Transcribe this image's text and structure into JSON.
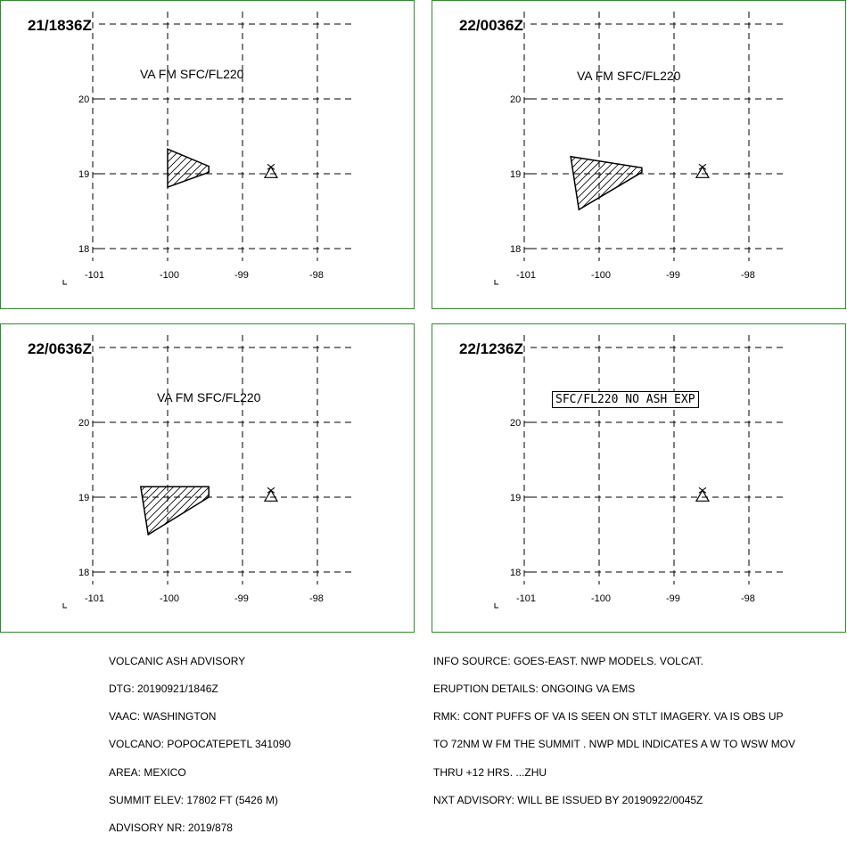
{
  "panels": [
    {
      "time": "21/1836Z",
      "header": "VA FM SFC/FL220",
      "polygon": [
        [
          -100.0,
          19.33
        ],
        [
          -99.45,
          19.1
        ],
        [
          -99.45,
          19.02
        ],
        [
          -100.0,
          18.82
        ]
      ]
    },
    {
      "time": "22/0036Z",
      "header": "VA FM SFC/FL220",
      "polygon": [
        [
          -100.38,
          19.23
        ],
        [
          -99.43,
          19.08
        ],
        [
          -99.43,
          19.02
        ],
        [
          -100.27,
          18.52
        ]
      ]
    },
    {
      "time": "22/0636Z",
      "header": "VA FM SFC/FL220",
      "polygon": [
        [
          -100.36,
          19.14
        ],
        [
          -99.45,
          19.14
        ],
        [
          -99.45,
          19.0
        ],
        [
          -100.26,
          18.5
        ]
      ]
    },
    {
      "time": "22/1236Z",
      "header": "",
      "box": "SFC/FL220 NO ASH EXP",
      "polygon": []
    }
  ],
  "axes": {
    "x_ticks": [
      -101,
      -100,
      -99,
      -98
    ],
    "y_ticks": [
      18,
      19,
      20
    ],
    "x_tick_labels": [
      "-101",
      "-100",
      "-99",
      "-98"
    ],
    "y_tick_labels": [
      "18",
      "19",
      "20"
    ]
  },
  "volcano": {
    "lon": -98.62,
    "lat": 19.02
  },
  "advisory_left": [
    "VOLCANIC ASH ADVISORY",
    "DTG: 20190921/1846Z",
    "VAAC: WASHINGTON",
    "VOLCANO: POPOCATEPETL 341090",
    "AREA: MEXICO",
    "SUMMIT ELEV: 17802 FT (5426 M)",
    "ADVISORY NR: 2019/878"
  ],
  "advisory_right": [
    "INFO SOURCE: GOES-EAST. NWP MODELS. VOLCAT.",
    "ERUPTION DETAILS: ONGOING VA EMS",
    "RMK: CONT PUFFS OF VA IS SEEN ON STLT IMAGERY. VA IS OBS UP",
    "TO 72NM W FM THE SUMMIT . NWP MDL INDICATES A W TO WSW MOV",
    "THRU +12 HRS. ...ZHU",
    "NXT ADVISORY: WILL BE ISSUED BY 20190922/0045Z"
  ],
  "colors": {
    "border": "#2e8b2e",
    "grid": "#000000"
  }
}
